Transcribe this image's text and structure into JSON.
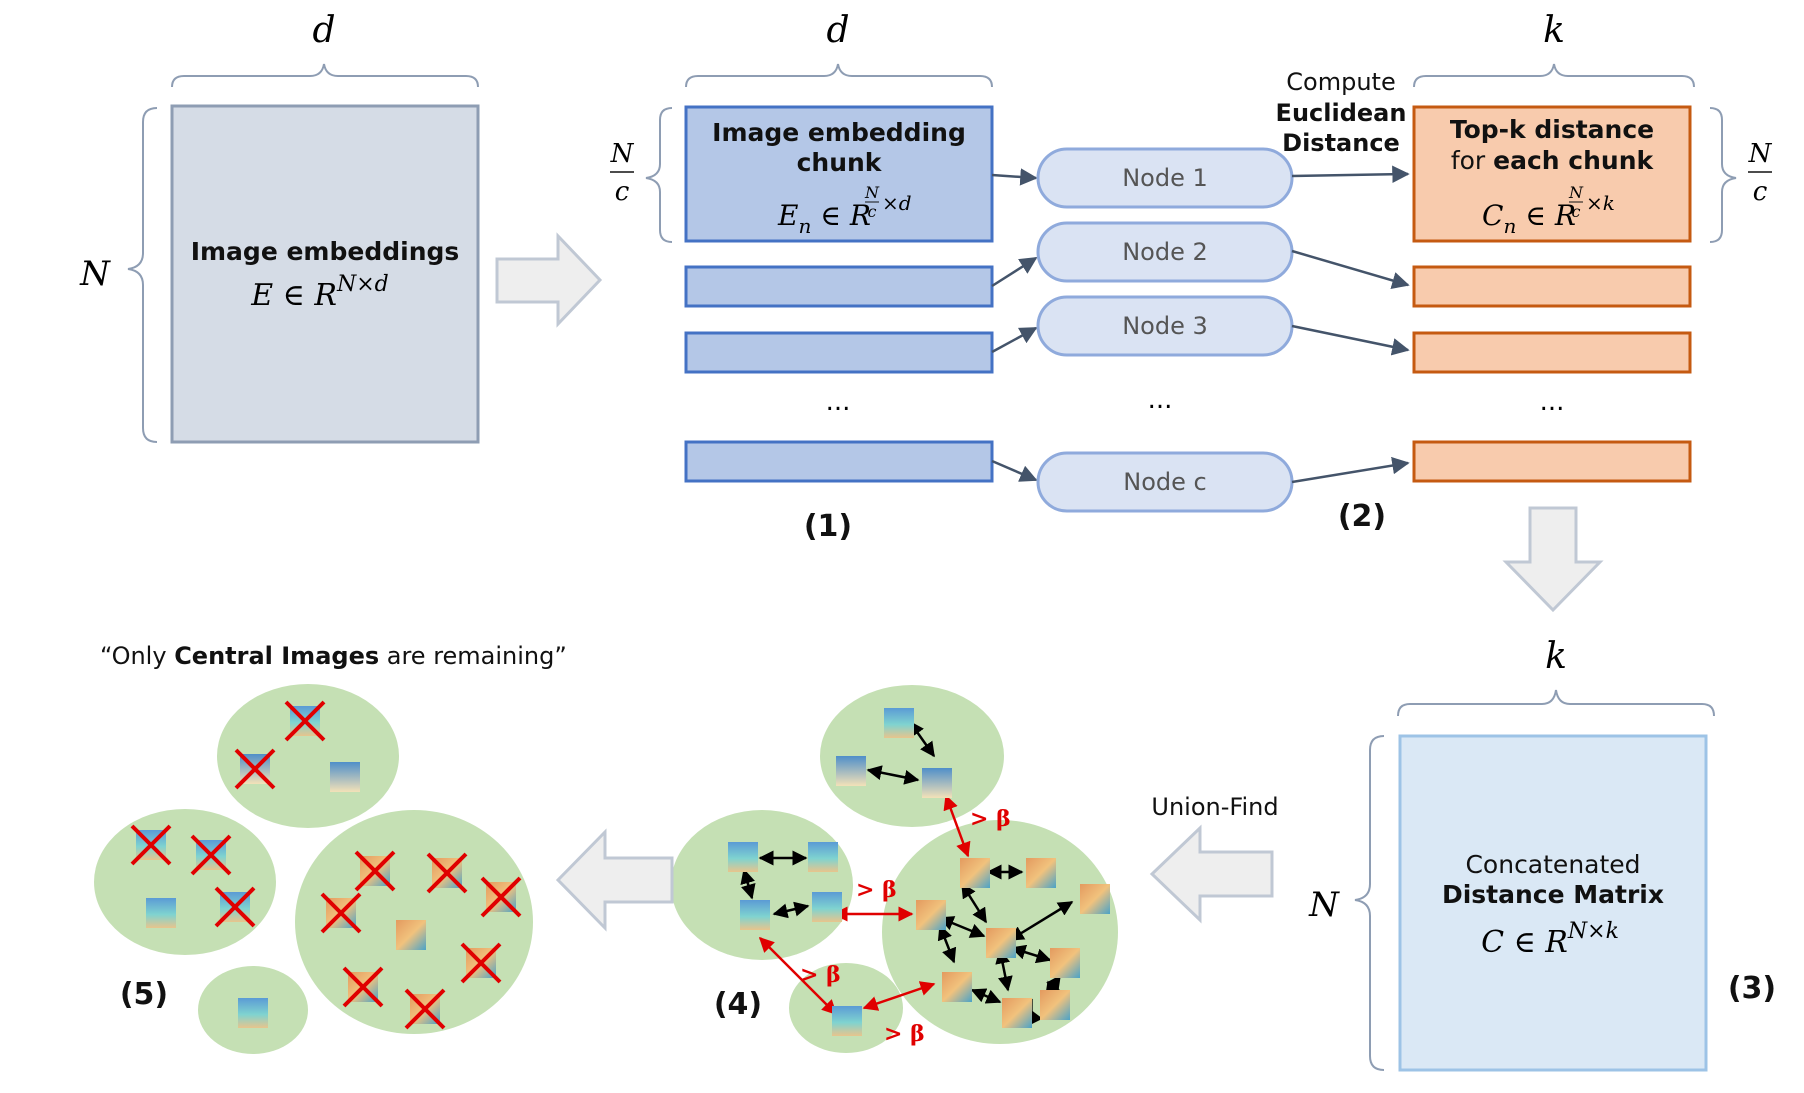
{
  "symbols": {
    "d": "d",
    "k": "k",
    "N": "N",
    "c": "c",
    "ellipsis": "..."
  },
  "embeddings": {
    "title": "Image embeddings",
    "formula": "E ∈ R",
    "sup": "N×d"
  },
  "chunk": {
    "title_line1": "Image embedding",
    "title_line2": "chunk",
    "formula": "E",
    "sub": "n",
    "mid": " ∈ R",
    "sup_frac_num": "N",
    "sup_frac_den": "c",
    "sup_tail": "×d"
  },
  "nodes": [
    "Node 1",
    "Node 2",
    "Node 3",
    "Node c"
  ],
  "compute": {
    "line1": "Compute",
    "line2": "Euclidean",
    "line3": "Distance"
  },
  "topk": {
    "title_line1": "Top-k distance",
    "title_line2_prefix": "for ",
    "title_line2_bold": "each chunk",
    "formula": "C",
    "sub": "n",
    "mid": " ∈ R",
    "sup_frac_num": "N",
    "sup_frac_den": "c",
    "sup_tail": "×k"
  },
  "steps": {
    "s1": "(1)",
    "s2": "(2)",
    "s3": "(3)",
    "s4": "(4)",
    "s5": "(5)"
  },
  "matrix": {
    "line1": "Concatenated",
    "line2": "Distance Matrix",
    "formula": "C ∈ R",
    "sup": "N×k"
  },
  "union_find": "Union-Find",
  "beta_label": "> β",
  "quote": {
    "prefix": "“Only ",
    "bold": "Central Images",
    "suffix": " are remaining”"
  },
  "colors": {
    "gray_box": "#d5dce6",
    "gray_border": "#8e9db3",
    "blue_box": "#b4c7e7",
    "blue_border": "#4472c4",
    "node_fill": "#dae3f3",
    "node_border": "#8faadc",
    "orange_box": "#f8cbad",
    "orange_border": "#c55a11",
    "light_box": "#dae8f5",
    "light_border": "#9dc3e6",
    "cluster": "#c5e0b4",
    "red": "#e00000",
    "arrow_fill": "#eeeeee",
    "arrow_stroke": "#c0c8d4"
  }
}
